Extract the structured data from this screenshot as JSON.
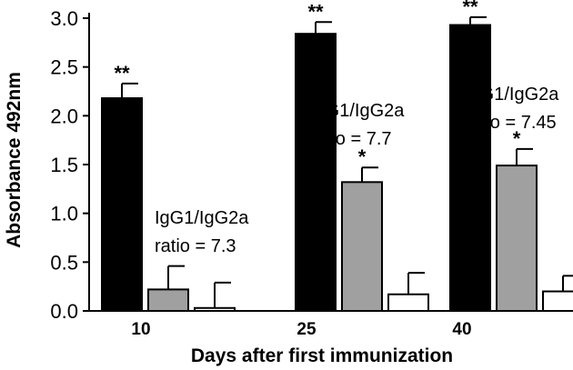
{
  "chart_data": {
    "type": "bar",
    "xlabel": "Days after first immunization",
    "ylabel": "Absorbance 492nm",
    "ylim": [
      0,
      3.0
    ],
    "yticks": [
      "0.0",
      "0.5",
      "1.0",
      "1.5",
      "2.0",
      "2.5",
      "3.0"
    ],
    "categories": [
      "10",
      "25",
      "40"
    ],
    "grid": false,
    "legend": "none",
    "series": [
      {
        "color": "#000000",
        "values": [
          2.18,
          2.84,
          2.93
        ],
        "errors": [
          0.15,
          0.12,
          0.08
        ],
        "significance": [
          "**",
          "**",
          "**"
        ]
      },
      {
        "color": "#a0a0a0",
        "values": [
          0.22,
          1.32,
          1.49
        ],
        "errors": [
          0.24,
          0.15,
          0.17
        ],
        "significance": [
          "",
          "*",
          "*"
        ]
      },
      {
        "color": "#ffffff",
        "values": [
          0.03,
          0.17,
          0.2
        ],
        "errors": [
          0.26,
          0.22,
          0.16
        ],
        "significance": [
          "",
          "",
          ""
        ]
      }
    ],
    "annotations": [
      {
        "category": "10",
        "lines": [
          "IgG1/IgG2a",
          "ratio = 7.3"
        ]
      },
      {
        "category": "25",
        "lines": [
          "IgG1/IgG2a",
          "ratio = 7.7"
        ]
      },
      {
        "category": "40",
        "lines": [
          "IgG1/IgG2a",
          "ratio = 7.45"
        ]
      }
    ]
  }
}
